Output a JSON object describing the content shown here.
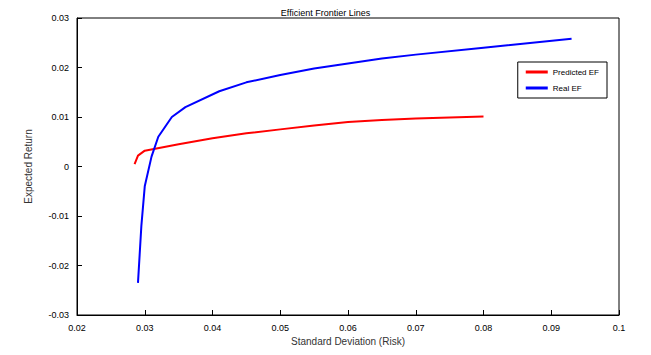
{
  "chart_data": {
    "type": "line",
    "title": "Efficient Frontier Lines",
    "x_label": "Standard Deviation (Risk)",
    "y_label": "Expected Return",
    "xlim": [
      0.02,
      0.1
    ],
    "xticks": [
      0.02,
      0.03,
      0.04,
      0.05,
      0.06,
      0.07,
      0.08,
      0.09,
      0.1
    ],
    "ylim": [
      -0.03,
      0.03
    ],
    "yticks": [
      -0.03,
      -0.02,
      -0.01,
      0,
      0.01,
      0.02,
      0.03
    ],
    "grid": false,
    "legend": "upper right",
    "series": [
      {
        "name": "Predicted EF",
        "color": "#ff0000",
        "x": [
          0.0285,
          0.029,
          0.03,
          0.035,
          0.04,
          0.045,
          0.05,
          0.055,
          0.06,
          0.065,
          0.07,
          0.075,
          0.08
        ],
        "values": [
          0.0005,
          0.0022,
          0.0032,
          0.0045,
          0.0057,
          0.0067,
          0.0075,
          0.0083,
          0.009,
          0.0094,
          0.0097,
          0.0099,
          0.0101
        ]
      },
      {
        "name": "Real EF",
        "color": "#0000ff",
        "x": [
          0.029,
          0.0295,
          0.03,
          0.031,
          0.032,
          0.034,
          0.036,
          0.041,
          0.045,
          0.05,
          0.055,
          0.06,
          0.065,
          0.07,
          0.08,
          0.093
        ],
        "values": [
          -0.0235,
          -0.012,
          -0.004,
          0.002,
          0.006,
          0.01,
          0.012,
          0.0152,
          0.017,
          0.0185,
          0.0198,
          0.0208,
          0.0218,
          0.0226,
          0.024,
          0.0258
        ]
      }
    ]
  }
}
